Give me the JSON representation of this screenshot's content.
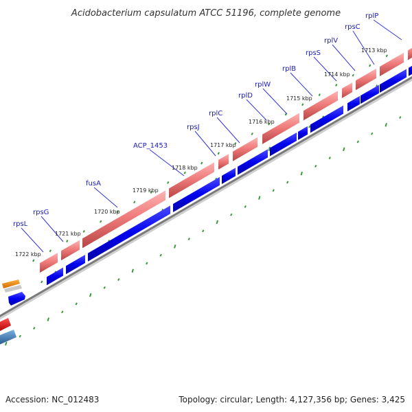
{
  "title": "Acidobacterium capsulatum ATCC 51196, complete genome",
  "footer": {
    "accession": "Accession: NC_012483",
    "summary": "Topology: circular; Length: 4,127,356 bp; Genes: 3,425"
  },
  "ticks": [
    "1713 kbp",
    "1714 kbp",
    "1715 kbp",
    "1716 kbp",
    "1717 kbp",
    "1718 kbp",
    "1719 kbp",
    "1720 kbp",
    "1721 kbp",
    "1722 kbp"
  ],
  "genes": [
    "rplP",
    "rpsC",
    "rplV",
    "rpsS",
    "rplB",
    "rplW",
    "rplD",
    "rplC",
    "rpsJ",
    "ACP_1453",
    "fusA",
    "rpsG",
    "rpsL"
  ],
  "colors": {
    "cds": "#0000ee",
    "gene_track": "#f07878",
    "backbone": "#777777",
    "gc_skew_ticks": "#3a9a3a",
    "label_line": "#3333dd",
    "orange_feature": "#f08a00",
    "red_feature": "#ee0000",
    "steel_feature": "#3a7ab8"
  }
}
